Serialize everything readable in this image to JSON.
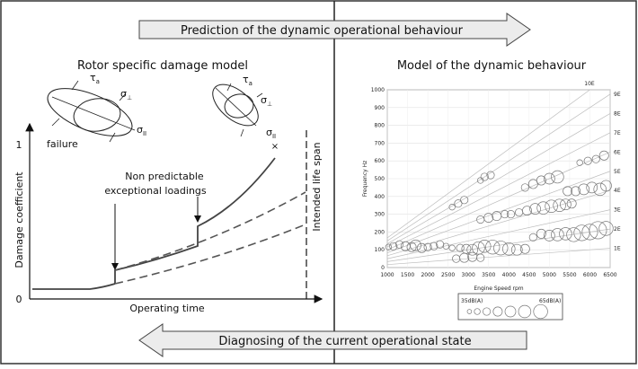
{
  "top_arrow": {
    "label": "Prediction of the dynamic operational behaviour"
  },
  "bottom_arrow": {
    "label": "Diagnosing of the current operational state"
  },
  "left": {
    "title": "Rotor specific damage model",
    "ylabel": "Damage coefficient",
    "xlabel": "Operating time",
    "y_tick_top": "1",
    "y_tick_bottom": "0",
    "failure_label": "failure",
    "annotation_line1": "Non predictable",
    "annotation_line2": "exceptional loadings",
    "lifespan_label": "Intended life span",
    "ellipse1": {
      "tau": "τ",
      "tau_sub": "a",
      "sigma_perp": "σ",
      "sigma_perp_sub": "⊥",
      "sigma_par": "σ",
      "sigma_par_sub": "II"
    },
    "ellipse2": {
      "tau": "τ",
      "tau_sub": "a",
      "sigma_perp": "σ",
      "sigma_perp_sub": "⊥",
      "sigma_par": "σ",
      "sigma_par_sub": "II"
    }
  },
  "right": {
    "title": "Model of the dynamic behaviour",
    "chart_data": {
      "type": "scatter",
      "title": "",
      "xlabel": "Engine Speed rpm",
      "ylabel": "Frequency Hz",
      "xlim": [
        1000,
        6500
      ],
      "ylim": [
        0,
        1000
      ],
      "x_ticks": [
        "1000",
        "1500",
        "2000",
        "2500",
        "3000",
        "3500",
        "4000",
        "4500",
        "5000",
        "5500",
        "6000",
        "6500"
      ],
      "y_ticks": [
        "0",
        "100",
        "200",
        "300",
        "400",
        "500",
        "600",
        "700",
        "800",
        "900",
        "1000"
      ],
      "order_labels": [
        "1E",
        "2E",
        "3E",
        "4E",
        "5E",
        "6E",
        "7E",
        "8E",
        "9E"
      ],
      "top_order_label": "10E",
      "legend_min": "35dB(A)",
      "legend_max": "65dB(A)",
      "points": [
        [
          1030,
          115,
          2
        ],
        [
          1150,
          120,
          3
        ],
        [
          1300,
          130,
          3
        ],
        [
          1450,
          120,
          4
        ],
        [
          1600,
          115,
          4
        ],
        [
          1700,
          125,
          5
        ],
        [
          1850,
          110,
          4
        ],
        [
          2000,
          115,
          3
        ],
        [
          2150,
          120,
          3
        ],
        [
          2300,
          130,
          3
        ],
        [
          2450,
          120,
          2
        ],
        [
          2600,
          110,
          2
        ],
        [
          2800,
          110,
          3
        ],
        [
          2950,
          105,
          4
        ],
        [
          3100,
          100,
          5
        ],
        [
          3250,
          110,
          6
        ],
        [
          3400,
          120,
          6
        ],
        [
          3600,
          115,
          7
        ],
        [
          3800,
          110,
          7
        ],
        [
          4000,
          105,
          6
        ],
        [
          4200,
          100,
          5
        ],
        [
          4400,
          105,
          4
        ],
        [
          2700,
          50,
          3
        ],
        [
          2900,
          55,
          4
        ],
        [
          3100,
          60,
          4
        ],
        [
          3300,
          55,
          3
        ],
        [
          4600,
          170,
          3
        ],
        [
          4800,
          190,
          4
        ],
        [
          5000,
          180,
          5
        ],
        [
          5200,
          185,
          6
        ],
        [
          5400,
          190,
          6
        ],
        [
          5600,
          185,
          7
        ],
        [
          5800,
          195,
          8
        ],
        [
          6000,
          200,
          8
        ],
        [
          6200,
          210,
          9
        ],
        [
          6400,
          220,
          7
        ],
        [
          2600,
          340,
          2
        ],
        [
          2750,
          360,
          3
        ],
        [
          2900,
          380,
          3
        ],
        [
          3300,
          270,
          3
        ],
        [
          3500,
          280,
          4
        ],
        [
          3700,
          290,
          4
        ],
        [
          3900,
          300,
          3
        ],
        [
          4050,
          300,
          3
        ],
        [
          4250,
          310,
          3
        ],
        [
          4450,
          320,
          4
        ],
        [
          4650,
          330,
          5
        ],
        [
          4850,
          335,
          6
        ],
        [
          5050,
          345,
          6
        ],
        [
          5250,
          350,
          6
        ],
        [
          5400,
          355,
          5
        ],
        [
          5550,
          360,
          4
        ],
        [
          4400,
          450,
          3
        ],
        [
          4600,
          470,
          4
        ],
        [
          4800,
          490,
          4
        ],
        [
          5000,
          500,
          5
        ],
        [
          5200,
          510,
          6
        ],
        [
          5450,
          430,
          4
        ],
        [
          5650,
          430,
          4
        ],
        [
          5850,
          440,
          5
        ],
        [
          6050,
          450,
          5
        ],
        [
          6250,
          440,
          6
        ],
        [
          6400,
          460,
          5
        ],
        [
          3300,
          490,
          2
        ],
        [
          3400,
          510,
          3
        ],
        [
          3550,
          520,
          3
        ],
        [
          5750,
          590,
          2
        ],
        [
          5950,
          600,
          3
        ],
        [
          6150,
          610,
          3
        ],
        [
          6350,
          630,
          4
        ]
      ],
      "legend_sizes": [
        1,
        2,
        3,
        4,
        5,
        6,
        7
      ]
    }
  }
}
